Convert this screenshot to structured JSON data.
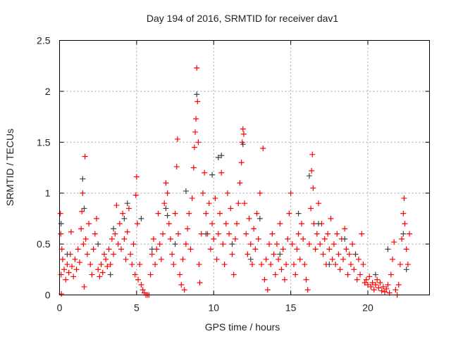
{
  "chart_data": {
    "type": "scatter",
    "title": "Day 194 of 2016, SRMTID for receiver dav1",
    "xlabel": "GPS time / hours",
    "ylabel": "SRMTID / TECUs",
    "xlim": [
      0,
      24
    ],
    "ylim": [
      0,
      2.5
    ],
    "xticks": [
      0,
      5,
      10,
      15,
      20
    ],
    "yticks": [
      0,
      0.5,
      1,
      1.5,
      2,
      2.5
    ],
    "ytick_labels": [
      "0",
      "0.5",
      "1",
      "1.5",
      "2",
      "2.5"
    ],
    "grid": true,
    "marker": "plus",
    "series": [
      {
        "name": "primary",
        "color": "#ff0000",
        "points": [
          [
            0.05,
            0.8
          ],
          [
            0.08,
            0.6
          ],
          [
            0.1,
            0.2
          ],
          [
            0.12,
            0.01
          ],
          [
            0.15,
            0.45
          ],
          [
            0.2,
            0.35
          ],
          [
            0.3,
            0.25
          ],
          [
            0.4,
            0.15
          ],
          [
            0.5,
            0.3
          ],
          [
            0.6,
            0.22
          ],
          [
            0.7,
            0.4
          ],
          [
            0.75,
            0.62
          ],
          [
            0.8,
            0.28
          ],
          [
            0.9,
            0.18
          ],
          [
            1.0,
            0.35
          ],
          [
            1.1,
            0.25
          ],
          [
            1.2,
            0.45
          ],
          [
            1.3,
            0.32
          ],
          [
            1.4,
            0.65
          ],
          [
            1.45,
            0.82
          ],
          [
            1.5,
            1.0
          ],
          [
            1.55,
            0.5
          ],
          [
            1.6,
            0.08
          ],
          [
            1.65,
            1.36
          ],
          [
            1.7,
            0.55
          ],
          [
            1.8,
            0.4
          ],
          [
            1.9,
            0.7
          ],
          [
            2.0,
            0.3
          ],
          [
            2.1,
            0.2
          ],
          [
            2.2,
            0.45
          ],
          [
            2.3,
            0.6
          ],
          [
            2.4,
            0.75
          ],
          [
            2.5,
            0.25
          ],
          [
            2.6,
            0.18
          ],
          [
            2.7,
            0.3
          ],
          [
            2.8,
            0.22
          ],
          [
            2.9,
            0.4
          ],
          [
            3.0,
            0.35
          ],
          [
            3.1,
            0.28
          ],
          [
            3.2,
            0.45
          ],
          [
            3.3,
            0.3
          ],
          [
            3.4,
            0.55
          ],
          [
            3.5,
            0.4
          ],
          [
            3.6,
            0.6
          ],
          [
            3.7,
            0.88
          ],
          [
            3.8,
            0.5
          ],
          [
            3.9,
            0.7
          ],
          [
            4.0,
            0.45
          ],
          [
            4.1,
            0.8
          ],
          [
            4.2,
            0.55
          ],
          [
            4.3,
            0.35
          ],
          [
            4.4,
            0.62
          ],
          [
            4.5,
            0.85
          ],
          [
            4.6,
            0.4
          ],
          [
            4.7,
            0.3
          ],
          [
            4.8,
            0.5
          ],
          [
            4.9,
            0.2
          ],
          [
            4.95,
            0.98
          ],
          [
            5.0,
            1.16
          ],
          [
            5.05,
            0.7
          ],
          [
            5.1,
            0.15
          ],
          [
            5.2,
            0.3
          ],
          [
            5.3,
            0.1
          ],
          [
            5.4,
            0.05
          ],
          [
            5.5,
            0.02
          ],
          [
            5.6,
            0.0
          ],
          [
            5.7,
            0.0
          ],
          [
            5.8,
            0.0
          ],
          [
            5.9,
            0.2
          ],
          [
            6.0,
            0.4
          ],
          [
            6.1,
            0.55
          ],
          [
            6.2,
            0.3
          ],
          [
            6.3,
            0.45
          ],
          [
            6.4,
            0.8
          ],
          [
            6.5,
            0.5
          ],
          [
            6.6,
            0.35
          ],
          [
            6.7,
            0.6
          ],
          [
            6.8,
            0.9
          ],
          [
            6.9,
            1.1
          ],
          [
            7.0,
            1.0
          ],
          [
            7.1,
            0.7
          ],
          [
            7.2,
            0.55
          ],
          [
            7.3,
            0.4
          ],
          [
            7.4,
            0.3
          ],
          [
            7.5,
            0.8
          ],
          [
            7.6,
            1.26
          ],
          [
            7.65,
            1.53
          ],
          [
            7.7,
            0.6
          ],
          [
            7.8,
            0.2
          ],
          [
            7.9,
            0.1
          ],
          [
            8.0,
            0.35
          ],
          [
            8.1,
            0.05
          ],
          [
            8.2,
            0.5
          ],
          [
            8.3,
            0.65
          ],
          [
            8.4,
            0.8
          ],
          [
            8.5,
            0.45
          ],
          [
            8.6,
            0.95
          ],
          [
            8.7,
            1.25
          ],
          [
            8.75,
            1.45
          ],
          [
            8.8,
            1.6
          ],
          [
            8.85,
            1.73
          ],
          [
            8.9,
            2.23
          ],
          [
            8.95,
            1.9
          ],
          [
            9.0,
            1.5
          ],
          [
            9.05,
            0.3
          ],
          [
            9.1,
            0.12
          ],
          [
            9.2,
            0.6
          ],
          [
            9.3,
            1.0
          ],
          [
            9.4,
            1.2
          ],
          [
            9.5,
            0.8
          ],
          [
            9.6,
            0.6
          ],
          [
            9.7,
            0.9
          ],
          [
            9.8,
            0.45
          ],
          [
            9.9,
            0.7
          ],
          [
            10.0,
            0.55
          ],
          [
            10.1,
            0.95
          ],
          [
            10.2,
            0.35
          ],
          [
            10.3,
            0.6
          ],
          [
            10.4,
            0.8
          ],
          [
            10.5,
            1.2
          ],
          [
            10.6,
            0.5
          ],
          [
            10.7,
            0.3
          ],
          [
            10.8,
            0.7
          ],
          [
            10.9,
            1.0
          ],
          [
            11.0,
            0.6
          ],
          [
            11.1,
            0.85
          ],
          [
            11.2,
            0.4
          ],
          [
            11.3,
            0.2
          ],
          [
            11.4,
            0.55
          ],
          [
            11.5,
            0.7
          ],
          [
            11.6,
            0.9
          ],
          [
            11.7,
            1.1
          ],
          [
            11.8,
            1.3
          ],
          [
            11.85,
            1.5
          ],
          [
            11.9,
            1.63
          ],
          [
            11.95,
            1.58
          ],
          [
            12.0,
            0.9
          ],
          [
            12.1,
            0.6
          ],
          [
            12.2,
            0.4
          ],
          [
            12.3,
            0.75
          ],
          [
            12.4,
            0.5
          ],
          [
            12.5,
            0.3
          ],
          [
            12.6,
            0.65
          ],
          [
            12.7,
            0.45
          ],
          [
            12.8,
            0.8
          ],
          [
            12.9,
            0.55
          ],
          [
            13.0,
            1.0
          ],
          [
            13.1,
            0.3
          ],
          [
            13.2,
            1.44
          ],
          [
            13.3,
            0.15
          ],
          [
            13.4,
            0.35
          ],
          [
            13.5,
            0.05
          ],
          [
            13.6,
            0.5
          ],
          [
            13.7,
            0.3
          ],
          [
            13.8,
            0.6
          ],
          [
            13.9,
            0.4
          ],
          [
            14.0,
            0.2
          ],
          [
            14.1,
            0.5
          ],
          [
            14.2,
            0.35
          ],
          [
            14.3,
            0.7
          ],
          [
            14.4,
            0.25
          ],
          [
            14.5,
            0.45
          ],
          [
            14.6,
            0.15
          ],
          [
            14.7,
            0.3
          ],
          [
            14.8,
            0.55
          ],
          [
            14.9,
            0.8
          ],
          [
            15.0,
            1.0
          ],
          [
            15.1,
            0.5
          ],
          [
            15.2,
            0.3
          ],
          [
            15.3,
            0.2
          ],
          [
            15.4,
            0.45
          ],
          [
            15.5,
            0.6
          ],
          [
            15.6,
            0.35
          ],
          [
            15.7,
            0.7
          ],
          [
            15.8,
            0.55
          ],
          [
            15.9,
            0.3
          ],
          [
            16.0,
            0.15
          ],
          [
            16.1,
            0.05
          ],
          [
            16.2,
            0.5
          ],
          [
            16.3,
            0.85
          ],
          [
            16.35,
            1.22
          ],
          [
            16.4,
            1.38
          ],
          [
            16.45,
            1.05
          ],
          [
            16.5,
            0.7
          ],
          [
            16.6,
            0.45
          ],
          [
            16.7,
            0.6
          ],
          [
            16.8,
            0.9
          ],
          [
            16.9,
            0.5
          ],
          [
            17.0,
            0.7
          ],
          [
            17.1,
            0.4
          ],
          [
            17.2,
            0.55
          ],
          [
            17.3,
            0.3
          ],
          [
            17.4,
            0.6
          ],
          [
            17.5,
            0.45
          ],
          [
            17.6,
            0.75
          ],
          [
            17.7,
            0.35
          ],
          [
            17.8,
            0.5
          ],
          [
            17.9,
            0.3
          ],
          [
            18.0,
            0.6
          ],
          [
            18.1,
            0.4
          ],
          [
            18.2,
            0.25
          ],
          [
            18.3,
            0.55
          ],
          [
            18.4,
            0.35
          ],
          [
            18.5,
            0.65
          ],
          [
            18.6,
            0.45
          ],
          [
            18.7,
            0.2
          ],
          [
            18.8,
            0.4
          ],
          [
            18.9,
            0.3
          ],
          [
            19.0,
            0.5
          ],
          [
            19.1,
            0.25
          ],
          [
            19.2,
            0.4
          ],
          [
            19.3,
            0.15
          ],
          [
            19.4,
            0.35
          ],
          [
            19.5,
            0.2
          ],
          [
            19.6,
            0.6
          ],
          [
            19.7,
            0.3
          ],
          [
            19.8,
            0.12
          ],
          [
            19.9,
            0.15
          ],
          [
            20.0,
            0.1
          ],
          [
            20.1,
            0.18
          ],
          [
            20.2,
            0.08
          ],
          [
            20.3,
            0.12
          ],
          [
            20.4,
            0.05
          ],
          [
            20.5,
            0.1
          ],
          [
            20.6,
            0.15
          ],
          [
            20.7,
            0.07
          ],
          [
            20.8,
            0.12
          ],
          [
            20.9,
            0.04
          ],
          [
            21.0,
            0.08
          ],
          [
            21.1,
            0.03
          ],
          [
            21.2,
            0.06
          ],
          [
            21.3,
            0.1
          ],
          [
            21.4,
            0.02
          ],
          [
            21.5,
            0.2
          ],
          [
            21.6,
            0.35
          ],
          [
            21.7,
            0.52
          ],
          [
            21.8,
            0.05
          ],
          [
            21.9,
            0.0
          ],
          [
            22.0,
            0.1
          ],
          [
            22.1,
            0.3
          ],
          [
            22.2,
            0.55
          ],
          [
            22.3,
            0.8
          ],
          [
            22.35,
            0.95
          ],
          [
            22.4,
            0.7
          ],
          [
            22.5,
            0.45
          ],
          [
            22.6,
            0.3
          ],
          [
            22.7,
            0.6
          ]
        ]
      },
      {
        "name": "secondary",
        "color": "#404040",
        "points": [
          [
            0.1,
            0.7
          ],
          [
            0.5,
            0.4
          ],
          [
            1.5,
            1.14
          ],
          [
            1.6,
            0.85
          ],
          [
            2.5,
            0.5
          ],
          [
            3.3,
            0.2
          ],
          [
            3.5,
            0.65
          ],
          [
            4.2,
            0.75
          ],
          [
            4.4,
            0.9
          ],
          [
            5.3,
            0.75
          ],
          [
            6.0,
            0.45
          ],
          [
            6.9,
            0.85
          ],
          [
            7.0,
            0.78
          ],
          [
            7.5,
            0.5
          ],
          [
            8.2,
            1.02
          ],
          [
            8.9,
            1.97
          ],
          [
            9.5,
            0.6
          ],
          [
            9.9,
            1.18
          ],
          [
            10.3,
            1.35
          ],
          [
            10.5,
            1.37
          ],
          [
            11.2,
            0.5
          ],
          [
            11.9,
            1.48
          ],
          [
            12.4,
            0.35
          ],
          [
            13.0,
            0.75
          ],
          [
            14.3,
            0.4
          ],
          [
            15.5,
            0.8
          ],
          [
            16.2,
            1.17
          ],
          [
            16.8,
            0.7
          ],
          [
            17.5,
            0.3
          ],
          [
            18.5,
            0.55
          ],
          [
            19.2,
            0.4
          ],
          [
            20.5,
            0.2
          ],
          [
            21.3,
            0.45
          ],
          [
            22.3,
            0.6
          ],
          [
            22.5,
            0.25
          ]
        ]
      }
    ]
  }
}
